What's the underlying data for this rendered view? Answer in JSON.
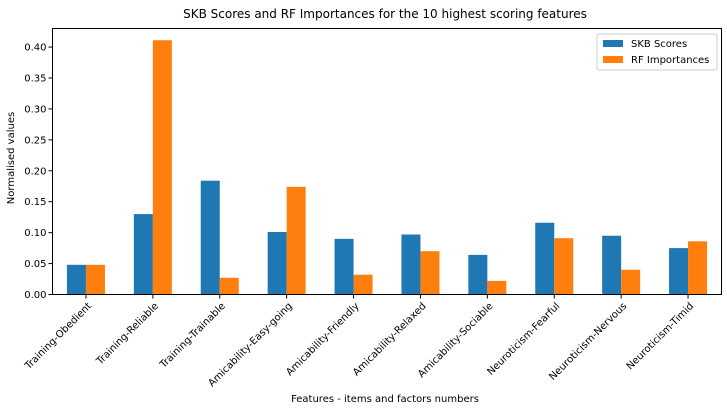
{
  "chart_data": {
    "type": "bar",
    "title": "SKB Scores and RF Importances for the 10 highest scoring features",
    "xlabel": "Features - items and factors numbers",
    "ylabel": "Normalised values",
    "categories": [
      "Training-Obedient",
      "Training-Reliable",
      "Training-Trainable",
      "Amicability-Easy-going",
      "Amicability-Friendly",
      "Amicability-Relaxed",
      "Amicability-Sociable",
      "Neuroticism-Fearful",
      "Neuroticism-Nervous",
      "Neuroticism-Timid"
    ],
    "series": [
      {
        "name": "SKB Scores",
        "color": "#1f77b4",
        "values": [
          0.048,
          0.13,
          0.184,
          0.101,
          0.09,
          0.097,
          0.064,
          0.116,
          0.095,
          0.075
        ]
      },
      {
        "name": "RF Importances",
        "color": "#ff7f0e",
        "values": [
          0.048,
          0.411,
          0.027,
          0.174,
          0.032,
          0.07,
          0.022,
          0.091,
          0.04,
          0.086
        ]
      }
    ],
    "ylim": [
      0,
      0.43
    ],
    "yticks": [
      "0.00",
      "0.05",
      "0.10",
      "0.15",
      "0.20",
      "0.25",
      "0.30",
      "0.35",
      "0.40"
    ],
    "grid": false,
    "legend_position": "top-right"
  }
}
